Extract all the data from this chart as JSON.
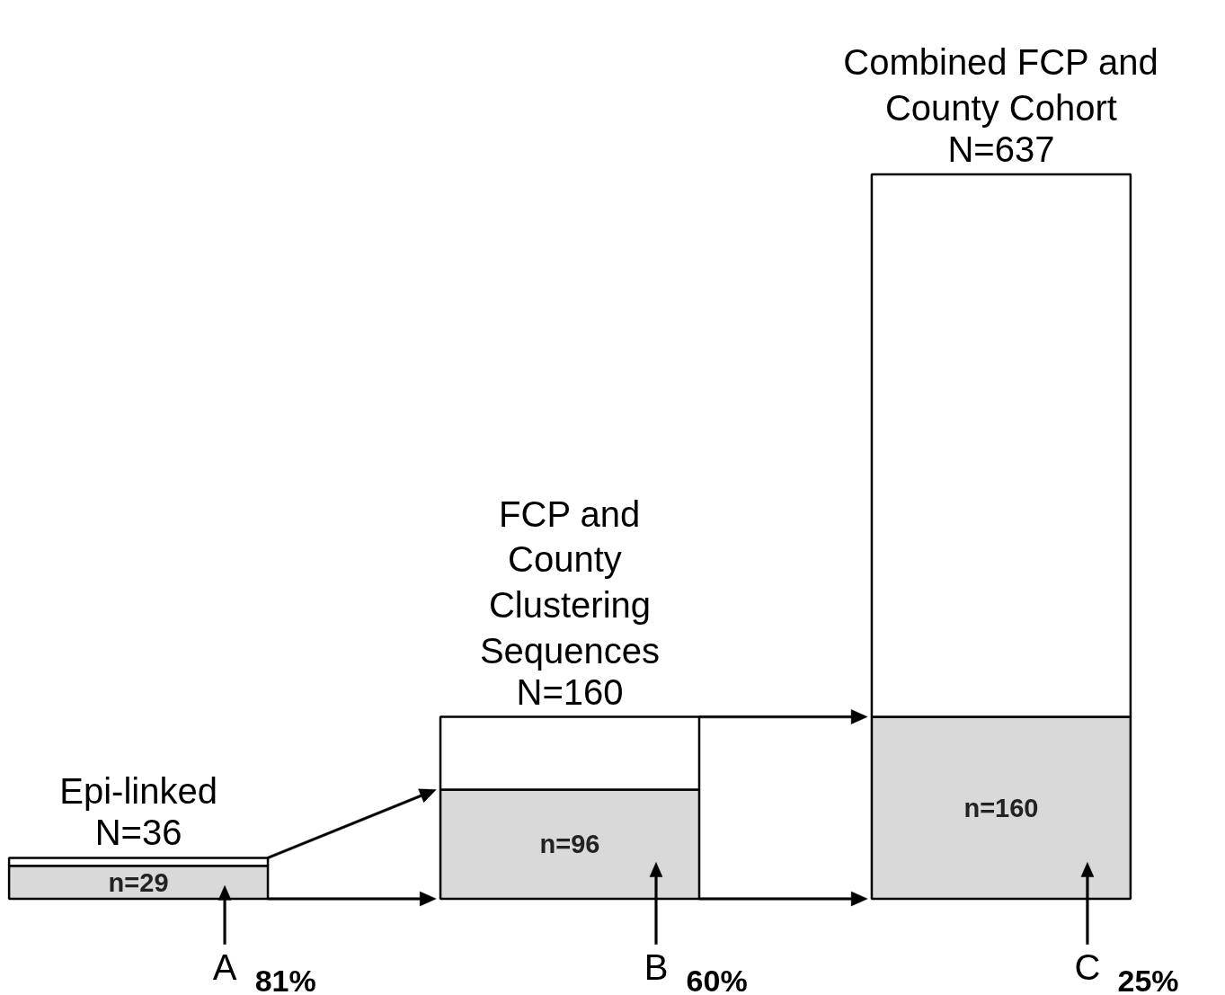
{
  "chart_data": {
    "type": "bar",
    "stacked": true,
    "categories": [
      "A",
      "B",
      "C"
    ],
    "series": [
      {
        "color": "#d9d9d9",
        "values": [
          29,
          96,
          160
        ],
        "value_labels": [
          "n=29",
          "n=96",
          "n=160"
        ]
      },
      {
        "color": "#ffffff",
        "values": [
          7,
          64,
          477
        ],
        "value_labels": [
          null,
          null,
          null
        ]
      }
    ],
    "totals": [
      "N=36",
      "N=160",
      "N=637"
    ],
    "annotations": [
      {
        "text": "Epi-linked",
        "x": "A",
        "y": 36
      },
      {
        "text": "FCP and\n County\nClustering\nSequences",
        "x": "B",
        "y": 160
      },
      {
        "text": "Combined FCP and\nCounty Cohort",
        "x": "C",
        "y": 637
      },
      {
        "text": "81%",
        "x": "A",
        "y": 0
      },
      {
        "text": "60%",
        "x": "B",
        "y": 0
      },
      {
        "text": "25%",
        "x": "C",
        "y": 0
      }
    ]
  }
}
